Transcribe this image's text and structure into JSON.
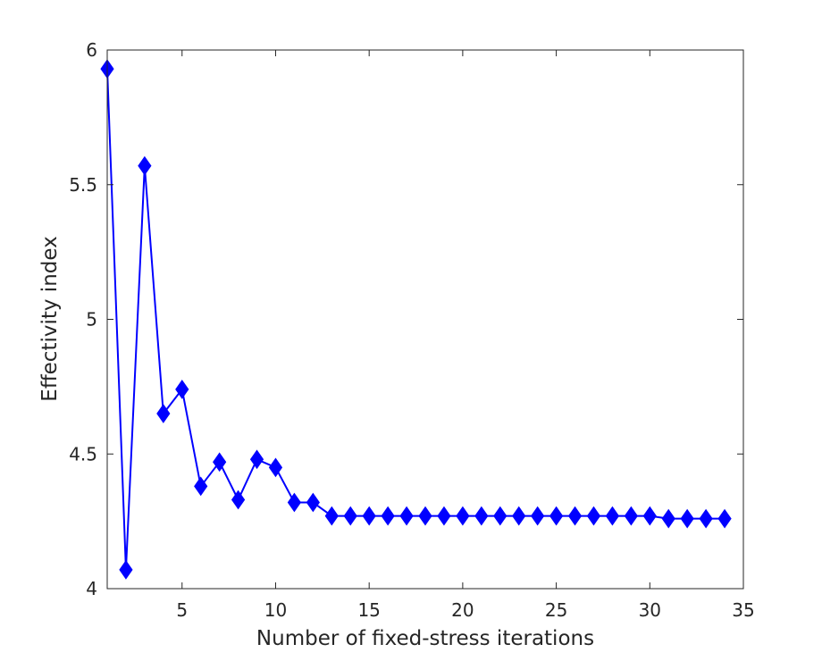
{
  "chart_data": {
    "type": "line",
    "title": "",
    "xlabel": "Number of fixed-stress iterations",
    "ylabel": "Effectivity index",
    "xlim": [
      1,
      35
    ],
    "ylim": [
      4,
      6
    ],
    "xticks": [
      5,
      10,
      15,
      20,
      25,
      30,
      35
    ],
    "xtick_labels": [
      "5",
      "10",
      "15",
      "20",
      "25",
      "30",
      "35"
    ],
    "yticks": [
      4,
      4.5,
      5,
      5.5,
      6
    ],
    "ytick_labels": [
      "4",
      "4.5",
      "5",
      "5.5",
      "6"
    ],
    "grid": false,
    "legend": "none",
    "marker": "diamond",
    "color": "#0000ff",
    "series": [
      {
        "x": [
          1,
          2,
          3,
          4,
          5,
          6,
          7,
          8,
          9,
          10,
          11,
          12,
          13,
          14,
          15,
          16,
          17,
          18,
          19,
          20,
          21,
          22,
          23,
          24,
          25,
          26,
          27,
          28,
          29,
          30,
          31,
          32,
          33,
          34
        ],
        "values": [
          5.93,
          4.07,
          5.57,
          4.65,
          4.74,
          4.38,
          4.47,
          4.33,
          4.48,
          4.45,
          4.32,
          4.32,
          4.27,
          4.27,
          4.27,
          4.27,
          4.27,
          4.27,
          4.27,
          4.27,
          4.27,
          4.27,
          4.27,
          4.27,
          4.27,
          4.27,
          4.27,
          4.27,
          4.27,
          4.27,
          4.26,
          4.26,
          4.26,
          4.26
        ]
      }
    ]
  }
}
